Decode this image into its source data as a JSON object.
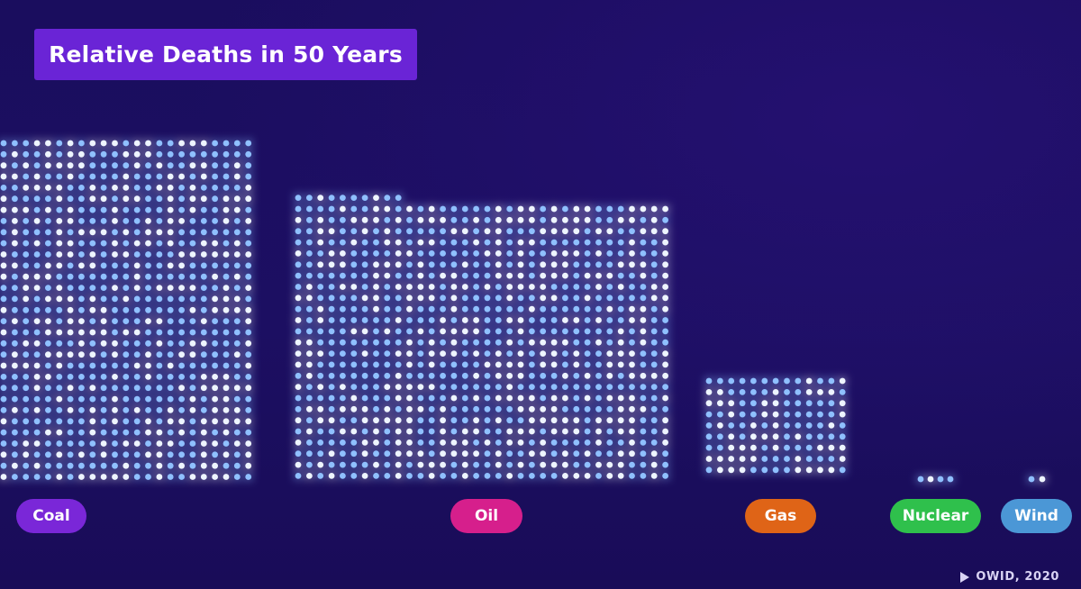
{
  "title": "Relative Deaths in 50 Years",
  "source": "OWID, 2020",
  "icons": {
    "source": "play-icon"
  },
  "colors": {
    "background": "#1c0f62",
    "title_box": "#6a24d6",
    "dot_light": "#8fc0ff",
    "dot_white": "#eef5ff",
    "coal": "#7a27d8",
    "oil": "#d61f8c",
    "gas": "#df6417",
    "nuclear": "#2fc04c",
    "wind": "#4b97d6"
  },
  "chart_data": {
    "type": "bar",
    "encoding": "dot grid (each dot = one unit of deaths)",
    "title": "Relative Deaths in 50 Years",
    "categories": [
      "Coal",
      "Oil",
      "Gas",
      "Nuclear",
      "Wind"
    ],
    "values": [
      1000,
      1000,
      180,
      4,
      2
    ],
    "series": [
      {
        "name": "Relative deaths",
        "values": [
          1000,
          1000,
          180,
          4,
          2
        ],
        "colors": [
          "#7a27d8",
          "#d61f8c",
          "#df6417",
          "#2fc04c",
          "#4b97d6"
        ]
      }
    ]
  }
}
